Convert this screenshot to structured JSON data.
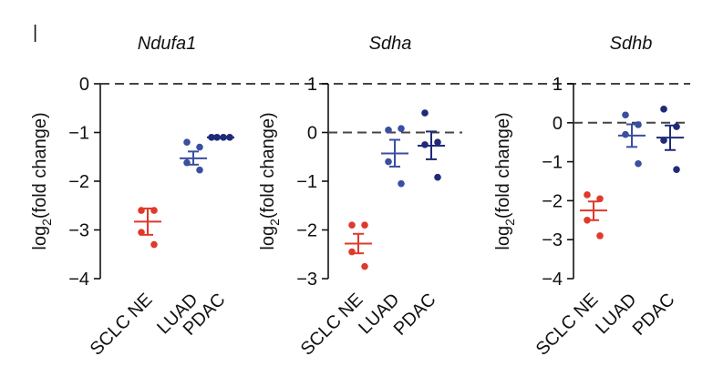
{
  "panel_marker": "|",
  "colors": {
    "SCLC NE": "#e0392b",
    "LUAD": "#3a4fa0",
    "PDAC": "#1f2a78",
    "axis": "#111111",
    "zero": "#444444"
  },
  "chart_data": [
    {
      "type": "scatter",
      "title": "Ndufa1",
      "ylabel_main": "log",
      "ylabel_sub": "2",
      "ylabel_rest": "(fold change)",
      "ylim": [
        -4,
        0
      ],
      "yticks": [
        "0",
        "−1",
        "−2",
        "−3",
        "−4"
      ],
      "ytick_values": [
        0,
        -1,
        -2,
        -3,
        -4
      ],
      "categories": [
        "SCLC NE",
        "LUAD",
        "PDAC"
      ],
      "reference_line": 0,
      "series": [
        {
          "name": "SCLC NE",
          "points": [
            -2.6,
            -2.6,
            -3.05,
            -3.3
          ],
          "mean": -2.83,
          "sem_low": -3.1,
          "sem_high": -2.56
        },
        {
          "name": "LUAD",
          "points": [
            -1.2,
            -1.3,
            -1.62,
            -1.77
          ],
          "mean": -1.53,
          "sem_low": -1.66,
          "sem_high": -1.39
        },
        {
          "name": "PDAC",
          "points": [
            -1.1,
            -1.1,
            -1.1,
            -1.1
          ],
          "mean": -1.1,
          "sem_low": -1.1,
          "sem_high": -1.1
        }
      ]
    },
    {
      "type": "scatter",
      "title": "Sdha",
      "ylabel_main": "log",
      "ylabel_sub": "2",
      "ylabel_rest": "(fold change)",
      "ylim": [
        -3,
        1
      ],
      "yticks": [
        "1",
        "0",
        "−1",
        "−2",
        "−3"
      ],
      "ytick_values": [
        1,
        0,
        -1,
        -2,
        -3
      ],
      "categories": [
        "SCLC NE",
        "LUAD",
        "PDAC"
      ],
      "reference_line": 0,
      "series": [
        {
          "name": "SCLC NE",
          "points": [
            -1.9,
            -1.9,
            -2.45,
            -2.75
          ],
          "mean": -2.28,
          "sem_low": -2.48,
          "sem_high": -2.08
        },
        {
          "name": "LUAD",
          "points": [
            0.05,
            0.08,
            -0.6,
            -1.05
          ],
          "mean": -0.43,
          "sem_low": -0.7,
          "sem_high": -0.15
        },
        {
          "name": "PDAC",
          "points": [
            0.4,
            -0.2,
            -0.25,
            -0.92
          ],
          "mean": -0.27,
          "sem_low": -0.55,
          "sem_high": 0.02
        }
      ]
    },
    {
      "type": "scatter",
      "title": "Sdhb",
      "ylabel_main": "log",
      "ylabel_sub": "2",
      "ylabel_rest": "(fold change)",
      "ylim": [
        -4,
        1
      ],
      "yticks": [
        "1",
        "0",
        "−1",
        "−2",
        "−3",
        "−4"
      ],
      "ytick_values": [
        1,
        0,
        -1,
        -2,
        -3,
        -4
      ],
      "categories": [
        "SCLC NE",
        "LUAD",
        "PDAC"
      ],
      "reference_line": 0,
      "series": [
        {
          "name": "SCLC NE",
          "points": [
            -1.85,
            -1.95,
            -2.5,
            -2.9
          ],
          "mean": -2.25,
          "sem_low": -2.5,
          "sem_high": -2.02
        },
        {
          "name": "LUAD",
          "points": [
            0.2,
            -0.05,
            -0.3,
            -1.05
          ],
          "mean": -0.33,
          "sem_low": -0.62,
          "sem_high": -0.04
        },
        {
          "name": "PDAC",
          "points": [
            0.35,
            -0.1,
            -0.45,
            -1.2
          ],
          "mean": -0.38,
          "sem_low": -0.7,
          "sem_high": -0.07
        }
      ]
    }
  ]
}
